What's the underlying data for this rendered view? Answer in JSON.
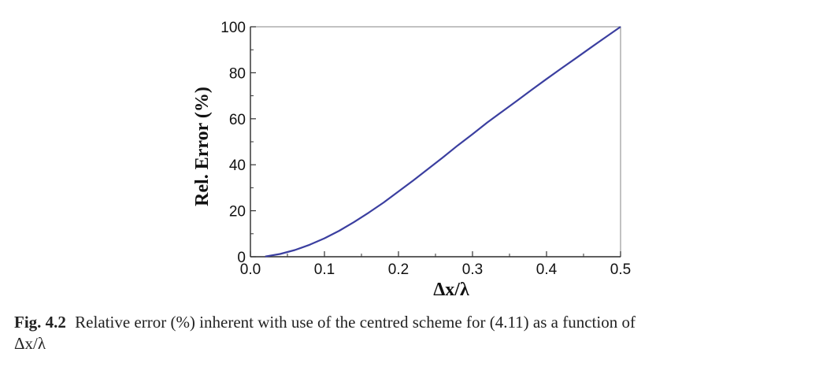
{
  "chart_data": {
    "type": "line",
    "xlabel": "Δx/λ",
    "ylabel": "Rel. Error (%)",
    "xlim": [
      0.0,
      0.5
    ],
    "ylim": [
      0,
      100
    ],
    "xticks": [
      "0.0",
      "0.1",
      "0.2",
      "0.3",
      "0.4",
      "0.5"
    ],
    "yticks": [
      "0",
      "20",
      "40",
      "60",
      "80",
      "100"
    ],
    "grid": false,
    "series": [
      {
        "color": "#3b3fa0",
        "x": [
          0.02,
          0.04,
          0.06,
          0.08,
          0.1,
          0.12,
          0.14,
          0.16,
          0.18,
          0.2,
          0.22,
          0.24,
          0.26,
          0.28,
          0.3,
          0.32,
          0.34,
          0.36,
          0.38,
          0.4,
          0.42,
          0.44,
          0.46,
          0.48,
          0.5
        ],
        "y": [
          0.1,
          1.2,
          2.9,
          5.2,
          8.0,
          11.3,
          15.1,
          19.2,
          23.6,
          28.4,
          33.2,
          38.2,
          43.2,
          48.4,
          53.3,
          58.4,
          63.1,
          67.8,
          72.6,
          77.3,
          81.9,
          86.4,
          91.0,
          95.5,
          100.0
        ]
      }
    ]
  },
  "caption": {
    "label": "Fig. 4.2",
    "text": "Relative error (%) inherent with use of the centred scheme for (4.11) as a function of",
    "math": "Δx/λ"
  }
}
